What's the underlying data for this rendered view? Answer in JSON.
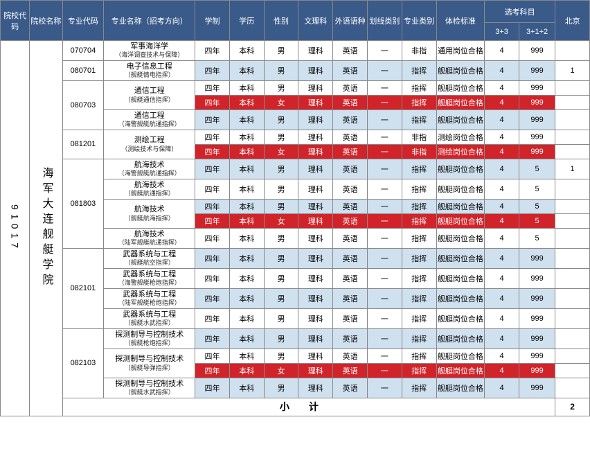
{
  "colors": {
    "header_bg": "#3a5a8a",
    "header_text": "#ffffff",
    "row_white": "#ffffff",
    "row_blue": "#cfe0ef",
    "row_red": "#d1232a",
    "row_red_text": "#ffffff",
    "border": "#888888"
  },
  "fonts": {
    "base_size_pt": 11,
    "vertical_size_pt": 16,
    "subtotal_size_pt": 14
  },
  "headers": {
    "inst_code": "院校代码",
    "inst_name": "院校名称",
    "major_code": "专业代码",
    "major_name": "专业名称（招考方向）",
    "duration": "学制",
    "degree": "学历",
    "gender": "性别",
    "sci_lib": "文理科",
    "lang": "外语语种",
    "line_cat": "划线类别",
    "major_cat": "专业类别",
    "physical": "体检标准",
    "selected_group": "选考科目",
    "sel_3_3": "3+3",
    "sel_3_1_2": "3+1+2",
    "beijing": "北京"
  },
  "institution": {
    "code": "91017",
    "name": "海军大连舰艇学院"
  },
  "major_codes": [
    "070704",
    "080701",
    "080703",
    "081201",
    "081803",
    "082101",
    "082103"
  ],
  "majors": {
    "070704": {
      "name": "军事海洋学",
      "sub": "（海洋调查技术与保障）"
    },
    "080701": {
      "name": "电子信息工程",
      "sub": "（舰艇情电指挥）"
    },
    "080703_a": {
      "name": "通信工程",
      "sub": "（舰艇通信指挥）"
    },
    "080703_b": {
      "name": "通信工程",
      "sub": "（海警舰艇航通指挥）"
    },
    "081201": {
      "name": "测绘工程",
      "sub": "（测绘技术与保障）"
    },
    "081803_a": {
      "name": "航海技术",
      "sub": "（海警舰艇航通指挥）"
    },
    "081803_b": {
      "name": "航海技术",
      "sub": "（舰艇航通指挥）"
    },
    "081803_c": {
      "name": "航海技术",
      "sub": "（舰艇航海指挥）"
    },
    "081803_d": {
      "name": "航海技术",
      "sub": "（陆军舰艇航通指挥）"
    },
    "082101_a": {
      "name": "武器系统与工程",
      "sub": "（舰艇航空指挥）"
    },
    "082101_b": {
      "name": "武器系统与工程",
      "sub": "（海警舰艇枪炮指挥）"
    },
    "082101_c": {
      "name": "武器系统与工程",
      "sub": "（陆军舰艇枪炮指挥）"
    },
    "082101_d": {
      "name": "武器系统与工程",
      "sub": "（舰艇水武指挥）"
    },
    "082103_a": {
      "name": "探测制导与控制技术",
      "sub": "（舰艇枪炮指挥）"
    },
    "082103_b": {
      "name": "探测制导与控制技术",
      "sub": "（舰艇导弹指挥）"
    },
    "082103_c": {
      "name": "探测制导与控制技术",
      "sub": "（舰艇水武指挥）"
    }
  },
  "common": {
    "duration": "四年",
    "degree": "本科",
    "sci": "理科",
    "lang": "英语",
    "line": "一"
  },
  "gender": {
    "m": "男",
    "f": "女"
  },
  "major_cat": {
    "nz": "非指",
    "zh": "指挥"
  },
  "physical": {
    "ty": "通用岗位合格",
    "jt": "舰艇岗位合格",
    "ch": "测绘岗位合格"
  },
  "rows": [
    {
      "mcode_span": 1,
      "mcode": "070704",
      "major_key": "070704",
      "gender": "m",
      "cat": "nz",
      "phys": "ty",
      "s33": "4",
      "s312": "999",
      "bj": "",
      "style": "white"
    },
    {
      "mcode_span": 1,
      "mcode": "080701",
      "major_key": "080701",
      "gender": "m",
      "cat": "zh",
      "phys": "jt",
      "s33": "4",
      "s312": "999",
      "bj": "1",
      "style": "blue"
    },
    {
      "mcode_span": 3,
      "mcode": "080703",
      "major_key": "080703_a",
      "gender": "m",
      "cat": "zh",
      "phys": "jt",
      "s33": "4",
      "s312": "999",
      "bj": "",
      "style": "white",
      "major_span": 2
    },
    {
      "major_key": "080703_a",
      "gender": "f",
      "cat": "zh",
      "phys": "jt",
      "s33": "4",
      "s312": "999",
      "bj": "",
      "style": "red",
      "no_major": true
    },
    {
      "major_key": "080703_b",
      "gender": "m",
      "cat": "zh",
      "phys": "jt",
      "s33": "4",
      "s312": "999",
      "bj": "",
      "style": "blue"
    },
    {
      "mcode_span": 2,
      "mcode": "081201",
      "major_key": "081201",
      "gender": "m",
      "cat": "nz",
      "phys": "ch",
      "s33": "4",
      "s312": "999",
      "bj": "",
      "style": "white",
      "major_span": 2
    },
    {
      "major_key": "081201",
      "gender": "f",
      "cat": "nz",
      "phys": "ch",
      "s33": "4",
      "s312": "999",
      "bj": "",
      "style": "red",
      "no_major": true
    },
    {
      "mcode_span": 5,
      "mcode": "081803",
      "major_key": "081803_a",
      "gender": "m",
      "cat": "zh",
      "phys": "jt",
      "s33": "4",
      "s312": "5",
      "bj": "1",
      "style": "blue"
    },
    {
      "major_key": "081803_b",
      "gender": "m",
      "cat": "zh",
      "phys": "jt",
      "s33": "4",
      "s312": "5",
      "bj": "",
      "style": "white"
    },
    {
      "major_key": "081803_c",
      "gender": "m",
      "cat": "zh",
      "phys": "jt",
      "s33": "4",
      "s312": "5",
      "bj": "",
      "style": "blue",
      "major_span": 2
    },
    {
      "major_key": "081803_c",
      "gender": "f",
      "cat": "zh",
      "phys": "jt",
      "s33": "4",
      "s312": "5",
      "bj": "",
      "style": "red",
      "no_major": true
    },
    {
      "major_key": "081803_d",
      "gender": "m",
      "cat": "zh",
      "phys": "jt",
      "s33": "4",
      "s312": "5",
      "bj": "",
      "style": "white"
    },
    {
      "mcode_span": 4,
      "mcode": "082101",
      "major_key": "082101_a",
      "gender": "m",
      "cat": "zh",
      "phys": "jt",
      "s33": "4",
      "s312": "999",
      "bj": "",
      "style": "blue"
    },
    {
      "major_key": "082101_b",
      "gender": "m",
      "cat": "zh",
      "phys": "jt",
      "s33": "4",
      "s312": "999",
      "bj": "",
      "style": "white"
    },
    {
      "major_key": "082101_c",
      "gender": "m",
      "cat": "zh",
      "phys": "jt",
      "s33": "4",
      "s312": "999",
      "bj": "",
      "style": "blue"
    },
    {
      "major_key": "082101_d",
      "gender": "m",
      "cat": "zh",
      "phys": "jt",
      "s33": "4",
      "s312": "999",
      "bj": "",
      "style": "white"
    },
    {
      "mcode_span": 4,
      "mcode": "082103",
      "major_key": "082103_a",
      "gender": "m",
      "cat": "zh",
      "phys": "jt",
      "s33": "4",
      "s312": "999",
      "bj": "",
      "style": "blue"
    },
    {
      "major_key": "082103_b",
      "gender": "m",
      "cat": "zh",
      "phys": "jt",
      "s33": "4",
      "s312": "999",
      "bj": "",
      "style": "white",
      "major_span": 2
    },
    {
      "major_key": "082103_b",
      "gender": "f",
      "cat": "zh",
      "phys": "jt",
      "s33": "4",
      "s312": "999",
      "bj": "",
      "style": "red",
      "no_major": true
    },
    {
      "major_key": "082103_c",
      "gender": "m",
      "cat": "zh",
      "phys": "jt",
      "s33": "4",
      "s312": "999",
      "bj": "",
      "style": "blue"
    }
  ],
  "subtotal": {
    "label": "小计",
    "bj": "2"
  }
}
